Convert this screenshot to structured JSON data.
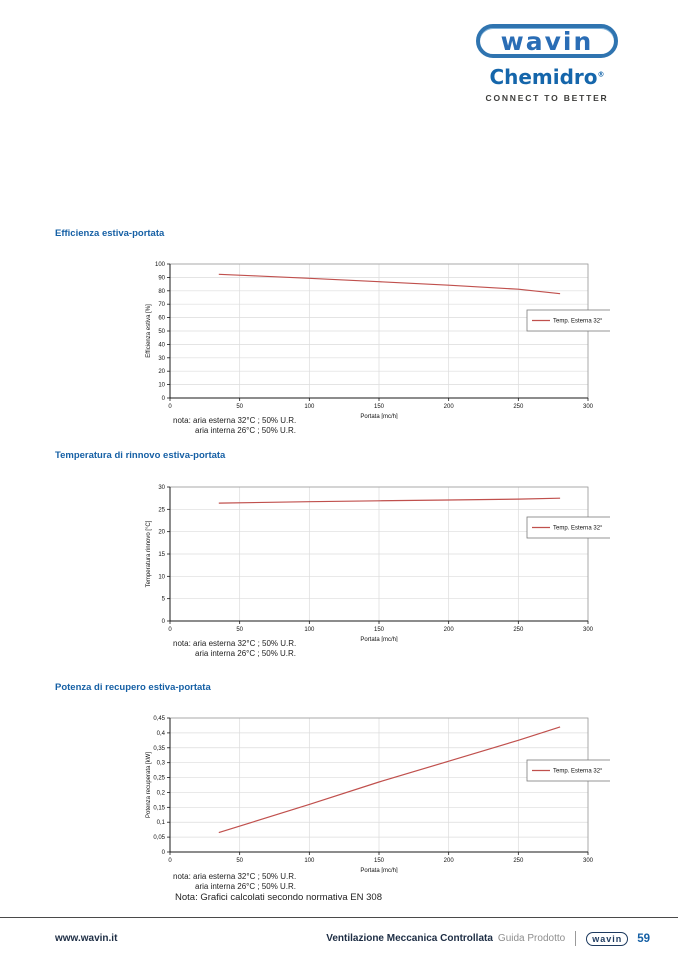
{
  "page": {
    "header": {
      "brand": "wavin",
      "sub_brand": "Chemidro",
      "registered": "®",
      "tagline": "CONNECT TO BETTER"
    },
    "footer": {
      "website": "www.wavin.it",
      "doc_title": "Ventilazione Meccanica Controllata",
      "doc_subtitle": "Guida Prodotto",
      "brand": "wavin",
      "page_number": "59"
    },
    "final_note": "Nota: Grafici calcolati secondo normativa EN 308",
    "colors": {
      "accent_blue": "#1660a5",
      "brand_blue": "#2a6db5",
      "line_red": "#c0504d"
    }
  },
  "chart_data": [
    {
      "type": "line",
      "title": "Efficienza estiva-portata",
      "xlabel": "Portata [mc/h]",
      "ylabel": "Efficienza estiva [%]",
      "xlim": [
        0,
        300
      ],
      "x_ticks": [
        0,
        50,
        100,
        150,
        200,
        250,
        300
      ],
      "ylim": [
        0,
        100
      ],
      "y_ticks": [
        0,
        10,
        20,
        30,
        40,
        50,
        60,
        70,
        80,
        90,
        100
      ],
      "y_tick_labels": [
        "0",
        "10",
        "20",
        "30",
        "40",
        "50",
        "60",
        "70",
        "80",
        "90",
        "100"
      ],
      "grid": true,
      "legend": {
        "label": "Temp. Esterna 32°",
        "position": "right-middle"
      },
      "series": [
        {
          "name": "Temp. Esterna 32°",
          "color": "#c0504d",
          "points": [
            [
              35,
              92.3
            ],
            [
              60,
              91.2
            ],
            [
              100,
              89.3
            ],
            [
              150,
              86.8
            ],
            [
              200,
              84.2
            ],
            [
              250,
              81.2
            ],
            [
              280,
              77.8
            ]
          ]
        }
      ],
      "notes": [
        "nota: aria esterna 32°C ; 50% U.R.",
        "aria interna 26°C ; 50% U.R."
      ]
    },
    {
      "type": "line",
      "title": "Temperatura di rinnovo estiva-portata",
      "xlabel": "Portata [mc/h]",
      "ylabel": "Temperatura rinnovo [°C]",
      "xlim": [
        0,
        300
      ],
      "x_ticks": [
        0,
        50,
        100,
        150,
        200,
        250,
        300
      ],
      "ylim": [
        0,
        30
      ],
      "y_ticks": [
        0,
        5,
        10,
        15,
        20,
        25,
        30
      ],
      "y_tick_labels": [
        "0",
        "5",
        "10",
        "15",
        "20",
        "25",
        "30"
      ],
      "grid": true,
      "legend": {
        "label": "Temp. Esterna 32°",
        "position": "right-upper"
      },
      "series": [
        {
          "name": "Temp. Esterna 32°",
          "color": "#c0504d",
          "points": [
            [
              35,
              26.4
            ],
            [
              100,
              26.7
            ],
            [
              150,
              26.9
            ],
            [
              200,
              27.1
            ],
            [
              250,
              27.3
            ],
            [
              280,
              27.5
            ]
          ]
        }
      ],
      "notes": [
        "nota: aria esterna 32°C ; 50% U.R.",
        "aria interna 26°C ; 50% U.R."
      ]
    },
    {
      "type": "line",
      "title": "Potenza di recupero estiva-portata",
      "xlabel": "Portata [mc/h]",
      "ylabel": "Potenza recuperata [kW]",
      "xlim": [
        0,
        300
      ],
      "x_ticks": [
        0,
        50,
        100,
        150,
        200,
        250,
        300
      ],
      "ylim": [
        0,
        0.45
      ],
      "y_ticks": [
        0,
        0.05,
        0.1,
        0.15,
        0.2,
        0.25,
        0.3,
        0.35,
        0.4,
        0.45
      ],
      "y_tick_labels": [
        "0",
        "0,05",
        "0,1",
        "0,15",
        "0,2",
        "0,25",
        "0,3",
        "0,35",
        "0,4",
        "0,45"
      ],
      "grid": true,
      "legend": {
        "label": "Temp. Esterna 32°",
        "position": "right-middle"
      },
      "series": [
        {
          "name": "Temp. Esterna 32°",
          "color": "#c0504d",
          "points": [
            [
              35,
              0.065
            ],
            [
              100,
              0.16
            ],
            [
              150,
              0.235
            ],
            [
              200,
              0.305
            ],
            [
              250,
              0.375
            ],
            [
              280,
              0.42
            ]
          ]
        }
      ],
      "notes": [
        "nota: aria esterna 32°C ; 50% U.R.",
        "aria interna 26°C ; 50% U.R."
      ]
    }
  ]
}
